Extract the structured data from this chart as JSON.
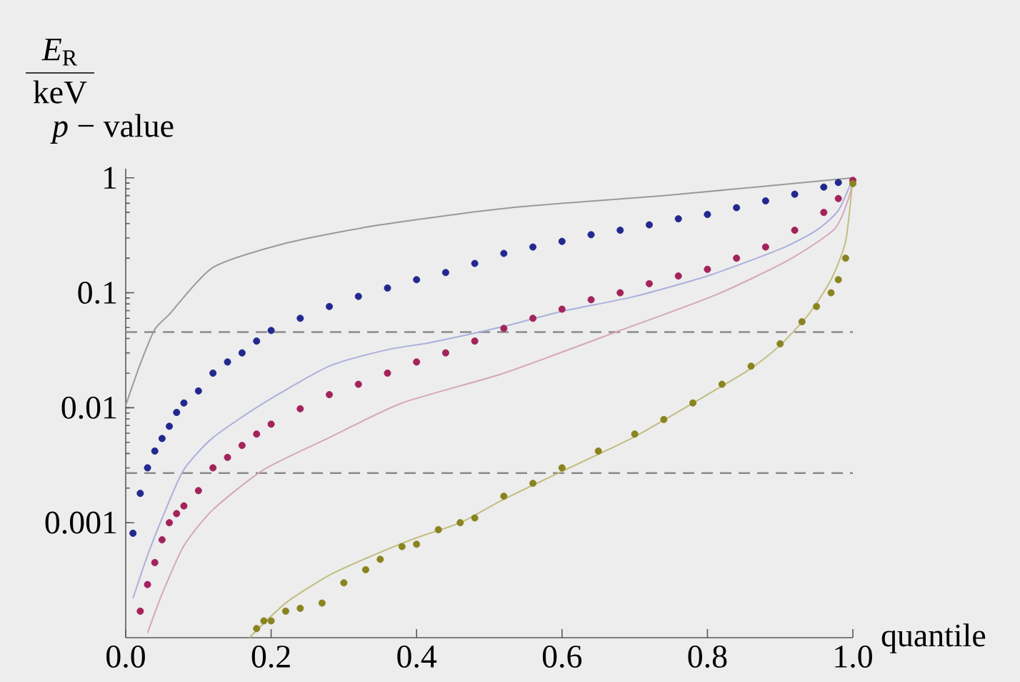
{
  "chart_data": {
    "type": "scatter",
    "ylabel": "*p* − value",
    "xlabel": "quantile",
    "annotations": [
      "*E*$_{R}$",
      "keV"
    ],
    "log": "y",
    "xlim": [
      0,
      1
    ],
    "xticks": [
      {
        "value": 0,
        "label": "0.0"
      },
      0.2,
      0.4,
      0.6,
      0.8,
      {
        "value": 1,
        "label": "1.0"
      }
    ],
    "ylim": [
      0.0001,
      1.2
    ],
    "yticks": [
      0.001,
      0.01,
      0.1,
      1
    ],
    "ref_lines": [
      {
        "axis": "y",
        "value": 0.0455,
        "color": "#8a8a8a",
        "line_style": "dashed"
      },
      {
        "axis": "y",
        "value": 0.0027,
        "color": "#8a8a8a",
        "line_style": "dashed"
      }
    ],
    "series": [
      {
        "type": "line",
        "color": "#9a9a9a",
        "x": [
          0,
          0.02,
          0.04,
          0.06,
          0.12,
          0.22,
          0.35,
          0.53,
          0.75,
          1.0
        ],
        "values": [
          0.0105,
          0.024,
          0.048,
          0.065,
          0.166,
          0.27,
          0.39,
          0.55,
          0.71,
          1.0
        ]
      },
      {
        "type": "line",
        "color": "#aab0dc",
        "x": [
          0.01,
          0.03,
          0.055,
          0.08,
          0.12,
          0.19,
          0.28,
          0.36,
          0.42,
          0.52,
          0.6,
          0.7,
          0.8,
          0.9,
          0.95,
          0.98,
          1.0
        ],
        "values": [
          0.00022,
          0.00052,
          0.0013,
          0.0029,
          0.0055,
          0.011,
          0.023,
          0.032,
          0.037,
          0.051,
          0.069,
          0.093,
          0.14,
          0.24,
          0.35,
          0.52,
          1.0
        ]
      },
      {
        "type": "line",
        "color": "#d6a6b8",
        "x": [
          0.03,
          0.05,
          0.08,
          0.12,
          0.19,
          0.28,
          0.38,
          0.52,
          0.68,
          0.81,
          0.91,
          0.975,
          0.995,
          1.0
        ],
        "values": [
          0.00011,
          0.00024,
          0.00063,
          0.0013,
          0.0029,
          0.0055,
          0.011,
          0.02,
          0.047,
          0.095,
          0.19,
          0.36,
          0.69,
          1.0
        ]
      },
      {
        "type": "line",
        "color": "#c2bd80",
        "x": [
          0.17,
          0.22,
          0.28,
          0.34,
          0.4,
          0.46,
          0.52,
          0.6,
          0.7,
          0.8,
          0.86,
          0.9,
          0.94,
          0.97,
          0.99,
          1.0
        ],
        "values": [
          0.0001,
          0.0002,
          0.00035,
          0.00052,
          0.00074,
          0.001,
          0.0016,
          0.0028,
          0.0056,
          0.013,
          0.022,
          0.035,
          0.066,
          0.13,
          0.28,
          1.0
        ]
      },
      {
        "color": "#23288f",
        "x": [
          0.01,
          0.02,
          0.03,
          0.04,
          0.05,
          0.06,
          0.07,
          0.08,
          0.1,
          0.12,
          0.14,
          0.16,
          0.18,
          0.2,
          0.24,
          0.28,
          0.32,
          0.36,
          0.4,
          0.44,
          0.48,
          0.52,
          0.56,
          0.6,
          0.64,
          0.68,
          0.72,
          0.76,
          0.8,
          0.84,
          0.88,
          0.92,
          0.96,
          0.98
        ],
        "values": [
          0.00081,
          0.0018,
          0.003,
          0.0042,
          0.0054,
          0.0069,
          0.0091,
          0.011,
          0.014,
          0.02,
          0.025,
          0.03,
          0.038,
          0.047,
          0.06,
          0.076,
          0.093,
          0.11,
          0.13,
          0.15,
          0.18,
          0.22,
          0.25,
          0.28,
          0.32,
          0.35,
          0.39,
          0.44,
          0.48,
          0.55,
          0.63,
          0.72,
          0.83,
          0.91
        ]
      },
      {
        "color": "#a3235c",
        "x": [
          0.02,
          0.03,
          0.04,
          0.05,
          0.06,
          0.07,
          0.08,
          0.1,
          0.12,
          0.14,
          0.16,
          0.18,
          0.2,
          0.24,
          0.28,
          0.32,
          0.36,
          0.4,
          0.44,
          0.48,
          0.52,
          0.56,
          0.6,
          0.64,
          0.68,
          0.72,
          0.76,
          0.8,
          0.84,
          0.88,
          0.92,
          0.96,
          0.98,
          1.0
        ],
        "values": [
          0.00017,
          0.00029,
          0.00045,
          0.00071,
          0.001,
          0.0012,
          0.0014,
          0.0019,
          0.003,
          0.0037,
          0.0047,
          0.0059,
          0.0072,
          0.0098,
          0.013,
          0.016,
          0.02,
          0.025,
          0.03,
          0.038,
          0.049,
          0.06,
          0.072,
          0.087,
          0.1,
          0.12,
          0.14,
          0.16,
          0.2,
          0.25,
          0.35,
          0.5,
          0.66,
          0.95
        ]
      },
      {
        "color": "#8a8420",
        "x": [
          0.18,
          0.19,
          0.2,
          0.22,
          0.24,
          0.27,
          0.3,
          0.33,
          0.35,
          0.38,
          0.4,
          0.43,
          0.46,
          0.48,
          0.52,
          0.56,
          0.6,
          0.65,
          0.7,
          0.74,
          0.78,
          0.82,
          0.86,
          0.9,
          0.93,
          0.95,
          0.97,
          0.98,
          0.99,
          1.0
        ],
        "values": [
          0.00012,
          0.00014,
          0.00014,
          0.00017,
          0.00018,
          0.0002,
          0.0003,
          0.00039,
          0.00048,
          0.00062,
          0.00065,
          0.00087,
          0.001,
          0.0011,
          0.0017,
          0.0022,
          0.003,
          0.0042,
          0.0059,
          0.0079,
          0.011,
          0.016,
          0.023,
          0.036,
          0.056,
          0.076,
          0.1,
          0.13,
          0.2,
          0.89
        ]
      }
    ]
  }
}
